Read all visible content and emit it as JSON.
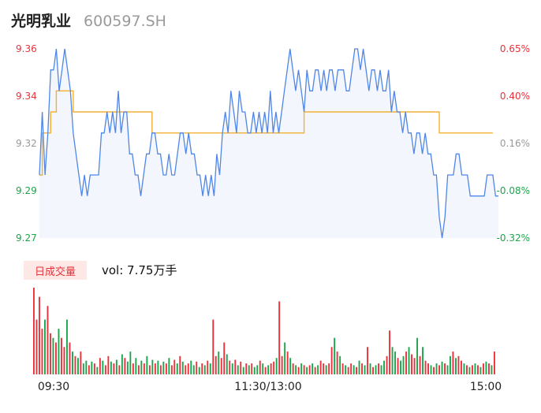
{
  "header": {
    "name": "光明乳业",
    "code": "600597.SH"
  },
  "volume": {
    "badge": "日成交量",
    "prefix": "vol: ",
    "value": "7.75万手"
  },
  "colors": {
    "price_line": "#4f86e8",
    "avg_line": "#f2b134",
    "up": "#e8323c",
    "down": "#1ea44b",
    "neutral": "#999999",
    "area": "#f3f6fc"
  },
  "chart_data": {
    "type": "line",
    "price_axis": {
      "ticks": [
        "9.36",
        "9.34",
        "9.32",
        "9.29",
        "9.27"
      ],
      "ylim": [
        9.27,
        9.36
      ]
    },
    "pct_axis": {
      "ticks": [
        "0.65%",
        "0.40%",
        "0.16%",
        "-0.08%",
        "-0.32%"
      ],
      "colors": [
        "up",
        "up",
        "neutral",
        "down",
        "down"
      ]
    },
    "x_ticks": [
      "09:30",
      "11:30/13:00",
      "15:00"
    ],
    "price": [
      9.3,
      9.33,
      9.3,
      9.32,
      9.35,
      9.35,
      9.36,
      9.34,
      9.35,
      9.36,
      9.35,
      9.34,
      9.32,
      9.31,
      9.3,
      9.29,
      9.3,
      9.29,
      9.3,
      9.3,
      9.3,
      9.3,
      9.32,
      9.32,
      9.33,
      9.32,
      9.33,
      9.32,
      9.34,
      9.32,
      9.33,
      9.33,
      9.31,
      9.31,
      9.3,
      9.3,
      9.29,
      9.3,
      9.31,
      9.31,
      9.32,
      9.32,
      9.31,
      9.31,
      9.3,
      9.3,
      9.31,
      9.3,
      9.3,
      9.31,
      9.32,
      9.32,
      9.31,
      9.32,
      9.31,
      9.31,
      9.3,
      9.3,
      9.29,
      9.3,
      9.29,
      9.3,
      9.29,
      9.31,
      9.3,
      9.32,
      9.33,
      9.32,
      9.34,
      9.33,
      9.32,
      9.34,
      9.33,
      9.33,
      9.32,
      9.32,
      9.33,
      9.32,
      9.33,
      9.32,
      9.33,
      9.32,
      9.34,
      9.32,
      9.33,
      9.32,
      9.33,
      9.34,
      9.35,
      9.36,
      9.35,
      9.34,
      9.35,
      9.34,
      9.33,
      9.35,
      9.34,
      9.34,
      9.35,
      9.35,
      9.34,
      9.35,
      9.34,
      9.35,
      9.35,
      9.34,
      9.35,
      9.35,
      9.35,
      9.34,
      9.34,
      9.35,
      9.36,
      9.36,
      9.35,
      9.36,
      9.35,
      9.34,
      9.35,
      9.35,
      9.34,
      9.35,
      9.34,
      9.34,
      9.35,
      9.33,
      9.34,
      9.33,
      9.33,
      9.32,
      9.33,
      9.32,
      9.32,
      9.31,
      9.32,
      9.32,
      9.31,
      9.32,
      9.31,
      9.31,
      9.3,
      9.3,
      9.28,
      9.27,
      9.28,
      9.3,
      9.3,
      9.3,
      9.31,
      9.31,
      9.3,
      9.3,
      9.3,
      9.29,
      9.29,
      9.29,
      9.29,
      9.29,
      9.29,
      9.3,
      9.3,
      9.3,
      9.29,
      9.29
    ],
    "avg": [
      9.3,
      9.32,
      9.32,
      9.32,
      9.33,
      9.33,
      9.34,
      9.34,
      9.34,
      9.34,
      9.34,
      9.34,
      9.33,
      9.33,
      9.33,
      9.33,
      9.33,
      9.33,
      9.33,
      9.33,
      9.33,
      9.33,
      9.33,
      9.33,
      9.33,
      9.33,
      9.33,
      9.33,
      9.33,
      9.33,
      9.33,
      9.33,
      9.33,
      9.33,
      9.33,
      9.33,
      9.33,
      9.33,
      9.33,
      9.33,
      9.32,
      9.32,
      9.32,
      9.32,
      9.32,
      9.32,
      9.32,
      9.32,
      9.32,
      9.32,
      9.32,
      9.32,
      9.32,
      9.32,
      9.32,
      9.32,
      9.32,
      9.32,
      9.32,
      9.32,
      9.32,
      9.32,
      9.32,
      9.32,
      9.32,
      9.32,
      9.32,
      9.32,
      9.32,
      9.32,
      9.32,
      9.32,
      9.32,
      9.32,
      9.32,
      9.32,
      9.32,
      9.32,
      9.32,
      9.32,
      9.32,
      9.32,
      9.32,
      9.32,
      9.32,
      9.32,
      9.32,
      9.32,
      9.32,
      9.32,
      9.32,
      9.32,
      9.32,
      9.32,
      9.33,
      9.33,
      9.33,
      9.33,
      9.33,
      9.33,
      9.33,
      9.33,
      9.33,
      9.33,
      9.33,
      9.33,
      9.33,
      9.33,
      9.33,
      9.33,
      9.33,
      9.33,
      9.33,
      9.33,
      9.33,
      9.33,
      9.33,
      9.33,
      9.33,
      9.33,
      9.33,
      9.33,
      9.33,
      9.33,
      9.33,
      9.33,
      9.33,
      9.33,
      9.33,
      9.33,
      9.33,
      9.33,
      9.33,
      9.33,
      9.33,
      9.33,
      9.33,
      9.33,
      9.33,
      9.33,
      9.33,
      9.33,
      9.32,
      9.32,
      9.32,
      9.32,
      9.32,
      9.32,
      9.32,
      9.32,
      9.32,
      9.32,
      9.32,
      9.32,
      9.32,
      9.32,
      9.32,
      9.32,
      9.32,
      9.32,
      9.32,
      9.32
    ],
    "volume": [
      95,
      60,
      85,
      50,
      60,
      75,
      45,
      40,
      35,
      50,
      40,
      30,
      60,
      35,
      25,
      20,
      18,
      25,
      12,
      15,
      10,
      14,
      12,
      8,
      18,
      15,
      10,
      20,
      14,
      12,
      16,
      10,
      22,
      18,
      14,
      25,
      12,
      18,
      10,
      15,
      12,
      20,
      10,
      16,
      12,
      15,
      10,
      14,
      12,
      18,
      10,
      16,
      12,
      20,
      14,
      10,
      12,
      15,
      10,
      14,
      8,
      12,
      10,
      15,
      12,
      60,
      20,
      25,
      18,
      35,
      22,
      15,
      12,
      16,
      10,
      14,
      8,
      12,
      10,
      12,
      8,
      10,
      15,
      12,
      8,
      10,
      12,
      14,
      18,
      80,
      20,
      35,
      25,
      18,
      12,
      10,
      8,
      12,
      10,
      8,
      10,
      12,
      8,
      10,
      15,
      12,
      10,
      12,
      30,
      40,
      25,
      20,
      12,
      10,
      8,
      12,
      10,
      8,
      15,
      12,
      10,
      30,
      12,
      8,
      10,
      12,
      10,
      15,
      20,
      48,
      30,
      25,
      18,
      15,
      20,
      25,
      30,
      22,
      18,
      40,
      20,
      30,
      15,
      12,
      10,
      8,
      12,
      10,
      14,
      12,
      10,
      20,
      25,
      18,
      20,
      15,
      12,
      10,
      8,
      10,
      12,
      10,
      8,
      12,
      14,
      12,
      10,
      25
    ],
    "volume_dir": [
      1,
      1,
      1,
      1,
      0,
      1,
      1,
      0,
      1,
      0,
      1,
      1,
      0,
      1,
      0,
      1,
      0,
      1,
      0,
      0,
      1,
      0,
      1,
      0,
      1,
      0,
      1,
      1,
      0,
      1,
      0,
      1,
      0,
      1,
      0,
      0,
      1,
      0,
      1,
      0,
      1,
      0,
      1,
      0,
      1,
      0,
      1,
      0,
      1,
      0,
      1,
      1,
      0,
      1,
      0,
      1,
      1,
      0,
      0,
      1,
      0,
      1,
      0,
      1,
      0,
      1,
      1,
      0,
      1,
      1,
      0,
      1,
      0,
      1,
      0,
      1,
      0,
      1,
      0,
      1,
      0,
      0,
      1,
      0,
      1,
      0,
      1,
      1,
      0,
      1,
      1,
      0,
      1,
      0,
      1,
      0,
      1,
      0,
      1,
      0,
      1,
      0,
      1,
      0,
      1,
      1,
      0,
      1,
      1,
      0,
      1,
      0,
      1,
      0,
      1,
      1,
      0,
      1,
      0,
      1,
      0,
      1,
      0,
      1,
      0,
      1,
      0,
      0,
      1,
      1,
      0,
      0,
      1,
      0,
      0,
      1,
      0,
      1,
      1,
      0,
      1,
      0,
      1,
      1,
      0,
      1,
      0,
      1,
      0,
      1,
      0,
      0,
      1,
      0,
      1,
      1,
      0,
      1,
      0,
      1,
      0,
      1,
      0,
      1,
      0,
      1,
      0,
      1
    ]
  }
}
